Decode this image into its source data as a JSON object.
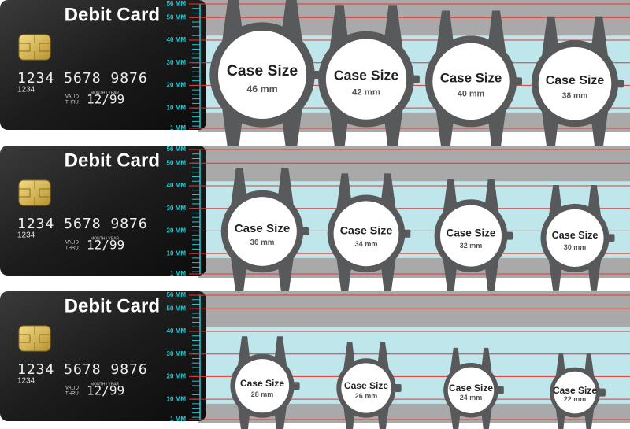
{
  "panels": [
    {
      "card": {
        "title": "Debit Card",
        "number": "1234 5678 9876",
        "small_number": "1234",
        "valid": "VALID",
        "thru": "THRU",
        "month_year": "MONTH / YEAR",
        "expiry": "12/99"
      },
      "ruler": [
        {
          "value": 56,
          "label": "56 MM"
        },
        {
          "value": 50,
          "label": "50 MM"
        },
        {
          "value": 40,
          "label": "40 MM"
        },
        {
          "value": 30,
          "label": "30 MM"
        },
        {
          "value": 20,
          "label": "20 MM"
        },
        {
          "value": 10,
          "label": "10 MM"
        },
        {
          "value": 1,
          "label": "1 MM"
        }
      ],
      "watches": [
        {
          "label": "Case Size",
          "size": 46,
          "size_label": "46 mm"
        },
        {
          "label": "Case Size",
          "size": 42,
          "size_label": "42 mm"
        },
        {
          "label": "Case Size",
          "size": 40,
          "size_label": "40 mm"
        },
        {
          "label": "Case Size",
          "size": 38,
          "size_label": "38 mm"
        }
      ]
    },
    {
      "card": {
        "title": "Debit Card",
        "number": "1234 5678 9876",
        "small_number": "1234",
        "valid": "VALID",
        "thru": "THRU",
        "month_year": "MONTH / YEAR",
        "expiry": "12/99"
      },
      "ruler": [
        {
          "value": 56,
          "label": "56 MM"
        },
        {
          "value": 50,
          "label": "50 MM"
        },
        {
          "value": 40,
          "label": "40 MM"
        },
        {
          "value": 30,
          "label": "30 MM"
        },
        {
          "value": 20,
          "label": "20 MM"
        },
        {
          "value": 10,
          "label": "10 MM"
        },
        {
          "value": 1,
          "label": "1 MM"
        }
      ],
      "watches": [
        {
          "label": "Case Size",
          "size": 36,
          "size_label": "36 mm"
        },
        {
          "label": "Case Size",
          "size": 34,
          "size_label": "34 mm"
        },
        {
          "label": "Case Size",
          "size": 32,
          "size_label": "32 mm"
        },
        {
          "label": "Case Size",
          "size": 30,
          "size_label": "30 mm"
        }
      ]
    },
    {
      "card": {
        "title": "Debit Card",
        "number": "1234 5678 9876",
        "small_number": "1234",
        "valid": "VALID",
        "thru": "THRU",
        "month_year": "MONTH / YEAR",
        "expiry": "12/99"
      },
      "ruler": [
        {
          "value": 56,
          "label": "56 MM"
        },
        {
          "value": 50,
          "label": "50 MM"
        },
        {
          "value": 40,
          "label": "40 MM"
        },
        {
          "value": 30,
          "label": "30 MM"
        },
        {
          "value": 20,
          "label": "20 MM"
        },
        {
          "value": 10,
          "label": "10 MM"
        },
        {
          "value": 1,
          "label": "1 MM"
        }
      ],
      "watches": [
        {
          "label": "Case Size",
          "size": 28,
          "size_label": "28 mm"
        },
        {
          "label": "Case Size",
          "size": 26,
          "size_label": "26 mm"
        },
        {
          "label": "Case Size",
          "size": 24,
          "size_label": "24 mm"
        },
        {
          "label": "Case Size",
          "size": 22,
          "size_label": "22 mm"
        }
      ]
    }
  ]
}
